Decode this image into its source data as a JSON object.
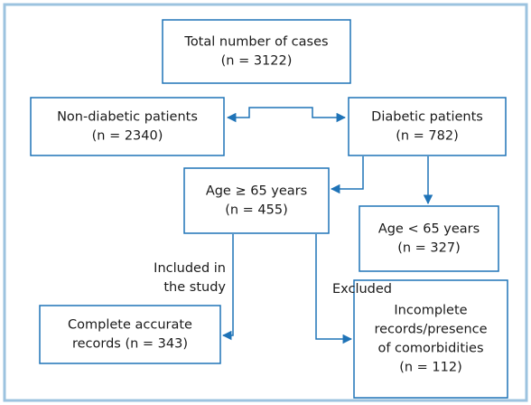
{
  "nodes": [
    {
      "lines": [
        "Total number of cases",
        "(n = 3122)"
      ]
    },
    {
      "lines": [
        "Non-diabetic patients",
        "(n = 2340)"
      ]
    },
    {
      "lines": [
        "Diabetic patients",
        "(n = 782)"
      ]
    },
    {
      "lines": [
        "Age ≥ 65 years",
        "(n = 455)"
      ]
    },
    {
      "lines": [
        "Age < 65 years",
        "(n = 327)"
      ]
    },
    {
      "lines": [
        "Complete accurate",
        "records (n = 343)"
      ]
    },
    {
      "lines": [
        "Incomplete",
        "records/presence",
        "of comorbidities",
        "(n = 112)"
      ]
    }
  ],
  "edge_labels": [
    {
      "lines": [
        "Included in",
        "the study"
      ]
    },
    {
      "lines": [
        "Excluded"
      ]
    }
  ]
}
